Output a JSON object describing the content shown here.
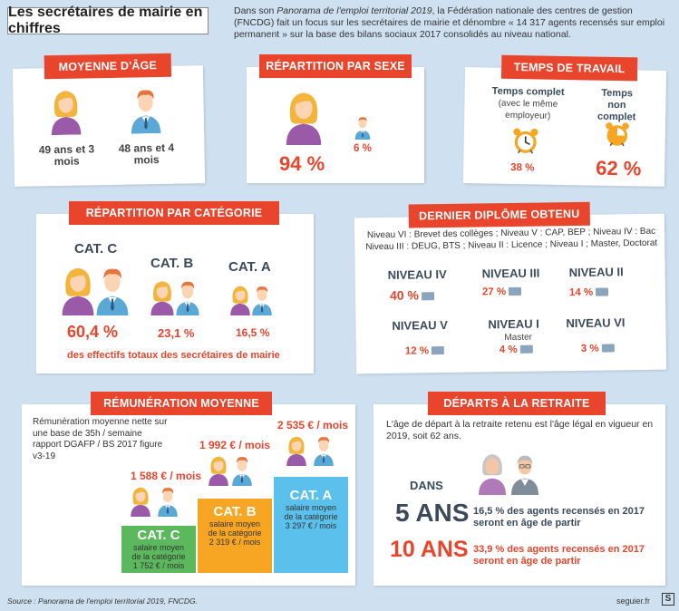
{
  "title": "Les secrétaires de mairie en chiffres",
  "intro": {
    "part1": "Dans son ",
    "source_title": "Panorama de l'emploi territorial 2019",
    "part2": ", la Fédération nationale des centres de gestion (FNCDG) fait un focus sur les secrétaires de mairie et dénombre « 14 317 agents recensés sur emploi permanent » sur la base des bilans sociaux 2017 consolidés au niveau national."
  },
  "age": {
    "heading": "MOYENNE D'ÂGE",
    "women": "49 ans et 3 mois",
    "men": "48 ans et 4 mois"
  },
  "sex": {
    "heading": "RÉPARTITION PAR SEXE",
    "women_pct": "94 %",
    "men_pct": "6 %"
  },
  "time": {
    "heading": "TEMPS DE TRAVAIL",
    "full_label": "Temps complet",
    "full_sub": "(avec le même employeur)",
    "full_pct": "38 %",
    "part_label": "Temps non complet",
    "part_pct": "62 %"
  },
  "category": {
    "heading": "RÉPARTITION PAR CATÉGORIE",
    "c_label": "CAT. C",
    "c_pct": "60,4 %",
    "b_label": "CAT. B",
    "b_pct": "23,1 %",
    "a_label": "CAT. A",
    "a_pct": "16,5 %",
    "note": "des effectifs totaux des secrétaires de mairie"
  },
  "diploma": {
    "heading": "DERNIER DIPLÔME OBTENU",
    "legend": "Niveau VI : Brevet des collèges ; Niveau V : CAP, BEP ; Niveau IV : Bac Niveau III : DEUG, BTS ; Niveau II : Licence ; Niveau I ; Master, Doctorat",
    "levels": [
      {
        "name": "NIVEAU IV",
        "pct": "40 %",
        "sub": ""
      },
      {
        "name": "NIVEAU III",
        "pct": "27 %",
        "sub": ""
      },
      {
        "name": "NIVEAU II",
        "pct": "14 %",
        "sub": ""
      },
      {
        "name": "NIVEAU V",
        "pct": "12 %",
        "sub": ""
      },
      {
        "name": "NIVEAU I",
        "pct": "4 %",
        "sub": "Master"
      },
      {
        "name": "NIVEAU VI",
        "pct": "3 %",
        "sub": ""
      }
    ]
  },
  "salary": {
    "heading": "RÉMUNÉRATION MOYENNE",
    "note": "Rémunération moyenne nette sur une base de 35h / semaine rapport DGAFP / BS 2017 figure v3-19",
    "c_amount": "1 588 € / mois",
    "c_label": "CAT. C",
    "c_sub": "salaire moyen de la catégorie 1 752 € / mois",
    "b_amount": "1 992 € / mois",
    "b_label": "CAT. B",
    "b_sub": "salaire moyen de la catégorie 2 319 € / mois",
    "a_amount": "2 535 € / mois",
    "a_label": "CAT. A",
    "a_sub": "salaire moyen de la catégorie 3 297 € / mois",
    "colors": {
      "c": "#5cb85c",
      "b": "#f6a623",
      "a": "#5bc0eb"
    }
  },
  "retire": {
    "heading": "DÉPARTS À LA RETRAITE",
    "note": "L'âge de départ à la retraite retenu est l'âge légal en vigueur en 2019, soit 62 ans.",
    "dans": "DANS",
    "y5": "5 ANS",
    "y5_text": "16,5 % des agents recensés en 2017 seront en âge de partir",
    "y10": "10 ANS",
    "y10_text": "33,9 % des agents recensés en 2017 seront en âge de partir"
  },
  "footer": {
    "source": "Source : Panorama de l'emploi territorial 2019, FNCDG.",
    "credit": "seguier.fr",
    "logo": "S"
  },
  "accent": "#e8452c"
}
